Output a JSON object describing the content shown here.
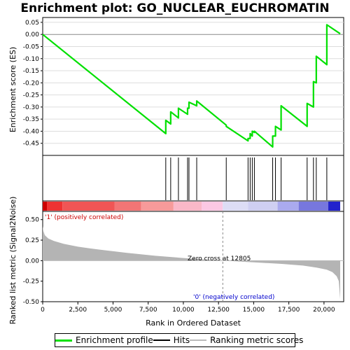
{
  "title": "Enrichment plot: GO_NUCLEAR_EUCHROMATIN",
  "colors": {
    "profile": "#00e000",
    "hits": "#000000",
    "metric_fill": "#b4b4b4",
    "pos_label": "#cc0000",
    "neg_label": "#0000cc",
    "zero_line": "#888888"
  },
  "legend": {
    "profile": "Enrichment profile",
    "hits": "Hits",
    "metric": "Ranking metric scores"
  },
  "chart_data": [
    {
      "type": "line",
      "name": "enrichment-profile",
      "ylabel": "Enrichment score (ES)",
      "xlim": [
        0,
        21400
      ],
      "ylim": [
        -0.5,
        0.07
      ],
      "yticks": [
        0.05,
        0.0,
        -0.05,
        -0.1,
        -0.15,
        -0.2,
        -0.25,
        -0.3,
        -0.35,
        -0.4,
        -0.45
      ],
      "ytick_labels": [
        "0.05",
        "0.00",
        "-0.05",
        "-0.10",
        "-0.15",
        "-0.20",
        "-0.25",
        "-0.30",
        "-0.35",
        "-0.40",
        "-0.45"
      ],
      "grid": true,
      "x": [
        0,
        8750,
        8750,
        9100,
        9100,
        9650,
        9650,
        10300,
        10300,
        10400,
        10400,
        10950,
        10950,
        13050,
        13050,
        14600,
        14600,
        14750,
        14750,
        14900,
        14900,
        15050,
        15050,
        16350,
        16350,
        16550,
        16550,
        16950,
        16950,
        18800,
        18800,
        19250,
        19250,
        19450,
        19450,
        20200,
        20200,
        21150
      ],
      "y": [
        0.0,
        -0.41,
        -0.355,
        -0.37,
        -0.32,
        -0.345,
        -0.305,
        -0.33,
        -0.305,
        -0.305,
        -0.28,
        -0.295,
        -0.275,
        -0.375,
        -0.38,
        -0.44,
        -0.43,
        -0.43,
        -0.41,
        -0.42,
        -0.4,
        -0.405,
        -0.4,
        -0.465,
        -0.42,
        -0.42,
        -0.38,
        -0.395,
        -0.295,
        -0.38,
        -0.285,
        -0.3,
        -0.195,
        -0.2,
        -0.09,
        -0.125,
        0.04,
        0.003
      ]
    },
    {
      "type": "hits",
      "name": "hits",
      "x": [
        8750,
        9100,
        9650,
        10300,
        10400,
        10950,
        13050,
        14600,
        14750,
        14900,
        15050,
        16350,
        16550,
        16950,
        18800,
        19250,
        19450,
        20200
      ]
    },
    {
      "type": "heatmap",
      "name": "rank-colorbar",
      "segments": [
        {
          "x0": 0,
          "x1": 300,
          "color": "#cc0000"
        },
        {
          "x0": 300,
          "x1": 1400,
          "color": "#ee3333"
        },
        {
          "x0": 1400,
          "x1": 5100,
          "color": "#f05555"
        },
        {
          "x0": 5100,
          "x1": 7000,
          "color": "#f27575"
        },
        {
          "x0": 7000,
          "x1": 9300,
          "color": "#f79a9a"
        },
        {
          "x0": 9300,
          "x1": 11300,
          "color": "#fab8c8"
        },
        {
          "x0": 11300,
          "x1": 12800,
          "color": "#fcc8e4"
        },
        {
          "x0": 12800,
          "x1": 14600,
          "color": "#ddddf5"
        },
        {
          "x0": 14600,
          "x1": 16700,
          "color": "#cfcff2"
        },
        {
          "x0": 16700,
          "x1": 18200,
          "color": "#aaaaee"
        },
        {
          "x0": 18200,
          "x1": 20300,
          "color": "#7777dd"
        },
        {
          "x0": 20300,
          "x1": 21150,
          "color": "#2222cc"
        }
      ]
    },
    {
      "type": "area",
      "name": "ranked-list-metric",
      "xlabel": "Rank in Ordered Dataset",
      "ylabel": "Ranked list metric (Signal2Noise)",
      "xlim": [
        0,
        21400
      ],
      "ylim": [
        -0.5,
        0.6
      ],
      "yticks": [
        0.5,
        0.25,
        0.0,
        -0.25,
        -0.5
      ],
      "ytick_labels": [
        "0.50",
        "0.25",
        "0.00",
        "-0.25",
        "-0.50"
      ],
      "xticks": [
        0,
        2500,
        5000,
        7500,
        10000,
        12500,
        15000,
        17500,
        20000
      ],
      "xtick_labels": [
        "0",
        "2,500",
        "5,000",
        "7,500",
        "10,000",
        "12,500",
        "15,000",
        "17,500",
        "20,000"
      ],
      "x": [
        0,
        50,
        150,
        400,
        800,
        1500,
        2500,
        4000,
        6000,
        8000,
        10000,
        12805,
        15000,
        17000,
        18500,
        19500,
        20200,
        20600,
        20900,
        21050,
        21150
      ],
      "y": [
        0.42,
        0.36,
        0.31,
        0.27,
        0.24,
        0.205,
        0.17,
        0.135,
        0.095,
        0.06,
        0.032,
        0.0,
        -0.02,
        -0.04,
        -0.06,
        -0.085,
        -0.11,
        -0.14,
        -0.19,
        -0.25,
        -0.47
      ],
      "annotations": {
        "zero_cross": "Zero cross at 12805",
        "zero_cross_x": 12805,
        "positive": "'1' (positively correlated)",
        "negative": "'0' (negatively correlated)"
      }
    }
  ]
}
